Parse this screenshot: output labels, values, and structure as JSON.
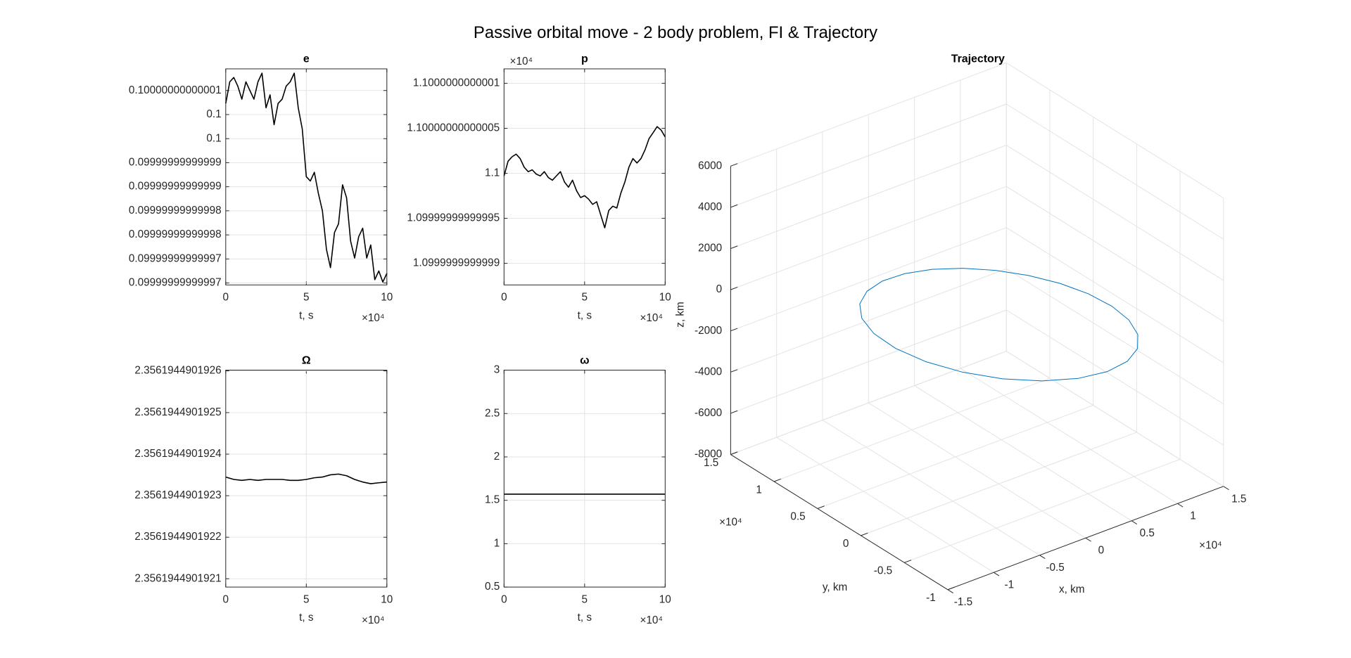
{
  "title": "Passive orbital move - 2 body problem, FI & Trajectory",
  "chart_data": [
    {
      "type": "line",
      "title": "e",
      "xlabel": "t, s",
      "x_exponent": "×10⁴",
      "color": "#000000",
      "grid": true,
      "x": [
        0,
        2500,
        5000,
        7500,
        10000,
        12500,
        15000,
        17500,
        20000,
        22500,
        25000,
        27500,
        30000,
        32500,
        35000,
        37500,
        40000,
        42500,
        45000,
        47500,
        50000,
        52500,
        55000,
        57500,
        60000,
        62500,
        65000,
        67500,
        70000,
        72500,
        75000,
        77500,
        80000,
        82500,
        85000,
        87500,
        90000,
        92500,
        95000,
        97500,
        100000
      ],
      "values": [
        0.1000000000000053,
        0.1000000000000098,
        0.1000000000000107,
        0.1000000000000089,
        0.1000000000000062,
        0.1000000000000098,
        0.100000000000008,
        0.1000000000000062,
        0.1000000000000098,
        0.1000000000000116,
        0.1000000000000044,
        0.1000000000000071,
        0.1000000000000009,
        0.1000000000000053,
        0.1000000000000062,
        0.1000000000000089,
        0.1000000000000098,
        0.1000000000000116,
        0.1000000000000044,
        0.1,
        0.0999999999999901,
        0.0999999999999892,
        0.099999999999991,
        0.0999999999999866,
        0.099999999999983,
        0.099999999999975,
        0.0999999999999712,
        0.0999999999999785,
        0.0999999999999803,
        0.0999999999999884,
        0.0999999999999857,
        0.0999999999999767,
        0.0999999999999732,
        0.0999999999999776,
        0.0999999999999794,
        0.0999999999999732,
        0.0999999999999759,
        0.0999999999999687,
        0.0999999999999705,
        0.0999999999999682,
        0.09999999999997
      ],
      "xlim": [
        0,
        100000
      ],
      "xticks": [
        0,
        {
          "value": 50000,
          "label": "5"
        },
        {
          "value": 100000,
          "label": "10"
        }
      ],
      "ylim": [
        0.0999999999999676,
        0.1000000000000125
      ],
      "yticks": [
        {
          "value": 0.100000000000008,
          "label": "0.10000000000001"
        },
        {
          "value": 0.100000000000003,
          "label": "0.1"
        },
        {
          "value": 0.099999999999998,
          "label": "0.1"
        },
        {
          "value": 0.099999999999993,
          "label": "0.09999999999999"
        },
        {
          "value": 0.099999999999988,
          "label": "0.09999999999999"
        },
        {
          "value": 0.099999999999983,
          "label": "0.09999999999998"
        },
        {
          "value": 0.099999999999978,
          "label": "0.09999999999998"
        },
        {
          "value": 0.099999999999973,
          "label": "0.09999999999997"
        },
        {
          "value": 0.099999999999968,
          "label": "0.09999999999997"
        }
      ]
    },
    {
      "type": "line",
      "title": "p",
      "xlabel": "t, s",
      "x_exponent": "×10⁴",
      "y_exponent": "×10⁴",
      "color": "#000000",
      "grid": true,
      "x": [
        0,
        2500,
        5000,
        7500,
        10000,
        12500,
        15000,
        17500,
        20000,
        22500,
        25000,
        27500,
        30000,
        32500,
        35000,
        37500,
        40000,
        42500,
        45000,
        47500,
        50000,
        52500,
        55000,
        57500,
        60000,
        62500,
        65000,
        67500,
        70000,
        72500,
        75000,
        77500,
        80000,
        82500,
        85000,
        87500,
        90000,
        92500,
        95000,
        97500,
        100000
      ],
      "values": [
        10999.99999999997,
        11000.000000000135,
        11000.000000000184,
        11000.000000000213,
        11000.000000000164,
        11000.000000000067,
        11000.000000000018,
        11000.000000000038,
        10999.99999999999,
        10999.99999999997,
        11000.000000000018,
        10999.999999999953,
        10999.999999999924,
        10999.99999999997,
        11000.000000000018,
        10999.999999999904,
        10999.999999999845,
        10999.999999999924,
        10999.999999999807,
        10999.99999999973,
        10999.99999999975,
        10999.999999999713,
        10999.999999999654,
        10999.999999999683,
        10999.999999999538,
        10999.999999999394,
        10999.999999999587,
        10999.999999999634,
        10999.999999999614,
        10999.99999999978,
        10999.999999999904,
        11000.000000000067,
        11000.000000000164,
        11000.000000000115,
        11000.000000000164,
        11000.00000000026,
        11000.000000000386,
        11000.000000000451,
        11000.000000000518,
        11000.00000000048,
        11000.000000000404
      ],
      "xlim": [
        0,
        100000
      ],
      "xticks": [
        0,
        {
          "value": 50000,
          "label": "5"
        },
        {
          "value": 100000,
          "label": "10"
        }
      ],
      "ylim": [
        10999.99999999876,
        11000.00000000116
      ],
      "yticks": [
        {
          "value": 11000.000000001,
          "label": "1.1000000000001"
        },
        {
          "value": 11000.0000000005,
          "label": "1.10000000000005"
        },
        {
          "value": 11000,
          "label": "1.1"
        },
        {
          "value": 10999.9999999995,
          "label": "1.09999999999995"
        },
        {
          "value": 10999.999999999,
          "label": "1.0999999999999"
        }
      ]
    },
    {
      "type": "line",
      "title": "Ω",
      "xlabel": "t, s",
      "x_exponent": "×10⁴",
      "color": "#000000",
      "grid": true,
      "x": [
        0,
        5000,
        10000,
        15000,
        20000,
        25000,
        30000,
        35000,
        40000,
        45000,
        50000,
        55000,
        60000,
        65000,
        70000,
        75000,
        80000,
        85000,
        90000,
        95000,
        100000
      ],
      "values": [
        2.356194490192345,
        2.356194490192339,
        2.356194490192337,
        2.356194490192339,
        2.356194490192337,
        2.356194490192339,
        2.356194490192339,
        2.356194490192339,
        2.356194490192337,
        2.356194490192337,
        2.356194490192339,
        2.356194490192343,
        2.356194490192345,
        2.35619449019235,
        2.356194490192352,
        2.356194490192348,
        2.356194490192339,
        2.356194490192333,
        2.356194490192329,
        2.356194490192331,
        2.356194490192333
      ],
      "xlim": [
        0,
        100000
      ],
      "xticks": [
        0,
        {
          "value": 50000,
          "label": "5"
        },
        {
          "value": 100000,
          "label": "10"
        }
      ],
      "ylim": [
        2.35619449019208,
        2.356194490192602
      ],
      "yticks": [
        2.3561944901926,
        2.3561944901925,
        2.3561944901924,
        2.3561944901923,
        2.3561944901922,
        2.3561944901921
      ]
    },
    {
      "type": "line",
      "title": "ω",
      "xlabel": "t, s",
      "x_exponent": "×10⁴",
      "color": "#000000",
      "grid": true,
      "x": [
        0,
        10000,
        20000,
        30000,
        40000,
        50000,
        60000,
        70000,
        80000,
        90000,
        100000
      ],
      "values": [
        1.5707963267949,
        1.5707963267949,
        1.5707963267949,
        1.5707963267949,
        1.5707963267949,
        1.5707963267949,
        1.5707963267949,
        1.5707963267949,
        1.5707963267949,
        1.5707963267949,
        1.5707963267949
      ],
      "xlim": [
        0,
        100000
      ],
      "xticks": [
        0,
        {
          "value": 50000,
          "label": "5"
        },
        {
          "value": 100000,
          "label": "10"
        }
      ],
      "ylim": [
        0.5,
        3
      ],
      "yticks": [
        0.5,
        1,
        1.5,
        2,
        2.5,
        3
      ]
    },
    {
      "type": "line3d",
      "title": "Trajectory",
      "xlabel": "x, km",
      "ylabel": "y, km",
      "zlabel": "z, km",
      "x_exponent": "×10⁴",
      "y_exponent": "×10⁴",
      "color": "#0072bd",
      "grid": true,
      "x": [
        -6124,
        -4098,
        -1790,
        688,
        3208,
        5625,
        7778,
        9502,
        10636,
        11044,
        10645,
        9430,
        7484,
        4974,
        2129,
        -793,
        -3545,
        -5923,
        -7778,
        -9023,
        -9623,
        -9586,
        -8947,
        -7769,
        -6124
      ],
      "y": [
        -6124,
        -7769,
        -8947,
        -9586,
        -9623,
        -9023,
        -7778,
        -5923,
        -3545,
        -793,
        2129,
        4974,
        7484,
        9430,
        10645,
        11044,
        10636,
        9502,
        7778,
        5625,
        3208,
        688,
        -1790,
        -4098,
        -6124
      ],
      "z": [
        5000,
        4845,
        4383,
        3632,
        2619,
        1388,
        0,
        -1461,
        -2895,
        -4185,
        -5215,
        -5880,
        -6111,
        -5880,
        -5215,
        -4185,
        -2895,
        -1461,
        0,
        1388,
        2619,
        3632,
        4383,
        4845,
        5000
      ],
      "xlim": [
        -15000,
        15000
      ],
      "xticks": [
        {
          "value": -15000,
          "label": "-1.5"
        },
        {
          "value": -10000,
          "label": "-1"
        },
        {
          "value": -5000,
          "label": "-0.5"
        },
        0,
        {
          "value": 5000,
          "label": "0.5"
        },
        {
          "value": 10000,
          "label": "1"
        },
        {
          "value": 15000,
          "label": "1.5"
        }
      ],
      "ylim": [
        -10000,
        15000
      ],
      "yticks": [
        {
          "value": -10000,
          "label": "-1"
        },
        {
          "value": -5000,
          "label": "-0.5"
        },
        0,
        {
          "value": 5000,
          "label": "0.5"
        },
        {
          "value": 10000,
          "label": "1"
        },
        {
          "value": 15000,
          "label": "1.5"
        }
      ],
      "zlim": [
        -8000,
        6000
      ],
      "zticks": [
        -8000,
        -6000,
        -4000,
        -2000,
        0,
        2000,
        4000,
        6000
      ]
    }
  ]
}
